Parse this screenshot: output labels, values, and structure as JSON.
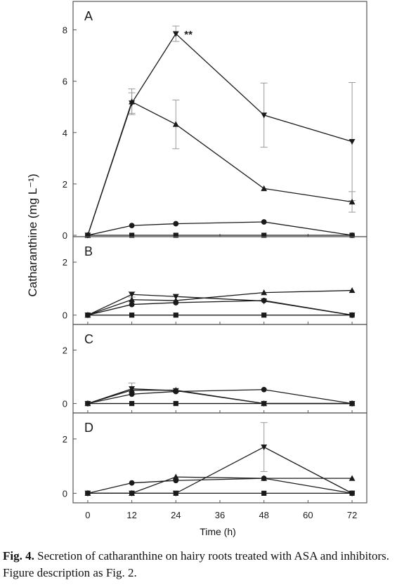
{
  "figure": {
    "ylabel": "Catharanthine (mg L⁻¹)",
    "xlabel": "Time (h)",
    "x_ticks": [
      0,
      12,
      24,
      36,
      48,
      60,
      72
    ],
    "caption": {
      "label": "Fig. 4.",
      "text": " Secretion of catharanthine on hairy roots treated with ASA and inhibitors. Figure description as Fig. 2."
    }
  },
  "chart_data": [
    {
      "type": "line",
      "panel": "A",
      "x": [
        0,
        12,
        24,
        48,
        72
      ],
      "xlim": [
        -4,
        76
      ],
      "ylim": [
        0,
        9
      ],
      "y_ticks": [
        0,
        2,
        4,
        6,
        8
      ],
      "annotations": [
        {
          "text": "**",
          "x": 24,
          "y": 7.85
        }
      ],
      "series": [
        {
          "marker": "square",
          "values": [
            0,
            0,
            0,
            0,
            0
          ]
        },
        {
          "marker": "circle",
          "values": [
            0,
            0.38,
            0.45,
            0.52,
            0
          ]
        },
        {
          "marker": "triangle-up",
          "values": [
            0,
            5.2,
            4.32,
            1.82,
            1.3
          ],
          "errors": [
            0,
            0.5,
            0.95,
            0,
            0.4
          ]
        },
        {
          "marker": "triangle-down",
          "values": [
            0,
            5.15,
            7.85,
            4.68,
            3.65
          ],
          "errors": [
            0,
            0.4,
            0.3,
            1.25,
            2.3
          ]
        }
      ]
    },
    {
      "type": "line",
      "panel": "B",
      "x": [
        0,
        12,
        24,
        48,
        72
      ],
      "xlim": [
        -4,
        76
      ],
      "ylim": [
        -0.3,
        2.8
      ],
      "y_ticks": [
        0,
        2
      ],
      "series": [
        {
          "marker": "square",
          "values": [
            0,
            0,
            0,
            0,
            0
          ]
        },
        {
          "marker": "circle",
          "values": [
            0,
            0.4,
            0.47,
            0.55,
            0
          ]
        },
        {
          "marker": "triangle-up",
          "values": [
            0,
            0.58,
            0.55,
            0.85,
            0.93
          ]
        },
        {
          "marker": "triangle-down",
          "values": [
            0,
            0.78,
            0.7,
            0.53,
            0
          ],
          "errors": [
            0,
            0.1,
            0,
            0,
            0
          ]
        }
      ]
    },
    {
      "type": "line",
      "panel": "C",
      "x": [
        0,
        12,
        24,
        48,
        72
      ],
      "xlim": [
        -4,
        76
      ],
      "ylim": [
        -0.3,
        2.8
      ],
      "y_ticks": [
        0,
        2
      ],
      "series": [
        {
          "marker": "square",
          "values": [
            0,
            0,
            0,
            0,
            0
          ]
        },
        {
          "marker": "circle",
          "values": [
            0,
            0.35,
            0.45,
            0.52,
            0
          ]
        },
        {
          "marker": "triangle-up",
          "values": [
            0,
            0.5,
            0.5,
            0,
            0
          ]
        },
        {
          "marker": "triangle-down",
          "values": [
            0,
            0.55,
            0.48,
            0,
            0
          ],
          "errors": [
            0,
            0.22,
            0,
            0,
            0
          ]
        }
      ]
    },
    {
      "type": "line",
      "panel": "D",
      "x": [
        0,
        12,
        24,
        48,
        72
      ],
      "xlim": [
        -4,
        76
      ],
      "ylim": [
        -0.3,
        2.8
      ],
      "y_ticks": [
        0,
        2
      ],
      "series": [
        {
          "marker": "square",
          "values": [
            0,
            0,
            0,
            0,
            0
          ]
        },
        {
          "marker": "circle",
          "values": [
            0,
            0.38,
            0.47,
            0.55,
            0
          ]
        },
        {
          "marker": "triangle-up",
          "values": [
            0,
            0,
            0.6,
            0.55,
            0.55
          ]
        },
        {
          "marker": "triangle-down",
          "values": [
            0,
            0,
            0,
            1.7,
            0
          ],
          "errors": [
            0,
            0,
            0,
            0.9,
            0
          ]
        }
      ]
    }
  ]
}
